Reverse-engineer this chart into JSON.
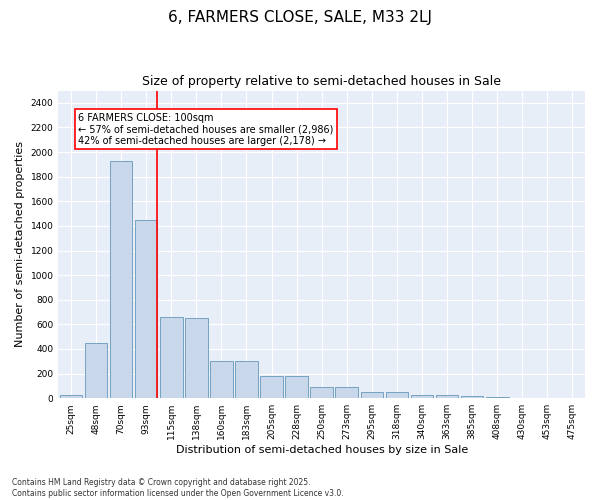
{
  "title": "6, FARMERS CLOSE, SALE, M33 2LJ",
  "subtitle": "Size of property relative to semi-detached houses in Sale",
  "xlabel": "Distribution of semi-detached houses by size in Sale",
  "ylabel": "Number of semi-detached properties",
  "categories": [
    "25sqm",
    "48sqm",
    "70sqm",
    "93sqm",
    "115sqm",
    "138sqm",
    "160sqm",
    "183sqm",
    "205sqm",
    "228sqm",
    "250sqm",
    "273sqm",
    "295sqm",
    "318sqm",
    "340sqm",
    "363sqm",
    "385sqm",
    "408sqm",
    "430sqm",
    "453sqm",
    "475sqm"
  ],
  "values": [
    30,
    450,
    1930,
    1450,
    660,
    650,
    300,
    300,
    180,
    180,
    90,
    90,
    50,
    50,
    25,
    25,
    15,
    10,
    5,
    5,
    2
  ],
  "bar_color": "#c8d8ea",
  "bar_edge_color": "#6699bb",
  "vline_x_index": 3,
  "vline_color": "red",
  "annotation_title": "6 FARMERS CLOSE: 100sqm",
  "annotation_line1": "← 57% of semi-detached houses are smaller (2,986)",
  "annotation_line2": "42% of semi-detached houses are larger (2,178) →",
  "ylim": [
    0,
    2500
  ],
  "yticks": [
    0,
    200,
    400,
    600,
    800,
    1000,
    1200,
    1400,
    1600,
    1800,
    2000,
    2200,
    2400
  ],
  "background_color": "#e8eef8",
  "footer_line1": "Contains HM Land Registry data © Crown copyright and database right 2025.",
  "footer_line2": "Contains public sector information licensed under the Open Government Licence v3.0.",
  "title_fontsize": 11,
  "subtitle_fontsize": 9,
  "tick_fontsize": 6.5,
  "ylabel_fontsize": 8,
  "xlabel_fontsize": 8,
  "annotation_fontsize": 7,
  "footer_fontsize": 5.5
}
